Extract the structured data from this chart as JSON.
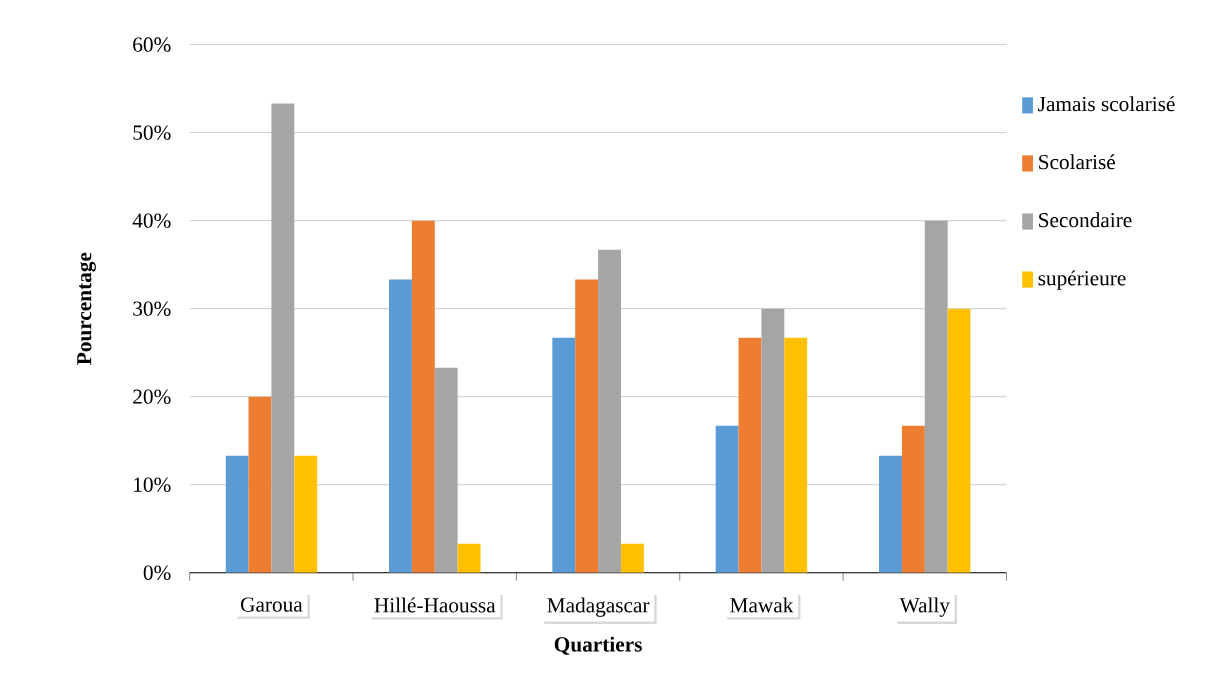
{
  "chart_data": {
    "type": "bar",
    "xlabel": "Quartiers",
    "ylabel": "Pourcentage",
    "categories": [
      "Garoua",
      "Hillé-Haoussa",
      "Madagascar",
      "Mawak",
      "Wally"
    ],
    "series": [
      {
        "name": "Jamais scolarisé",
        "color": "#5b9bd5",
        "values": [
          13.3,
          33.3,
          26.7,
          16.7,
          13.3
        ]
      },
      {
        "name": "Scolarisé",
        "color": "#ed7d31",
        "values": [
          20,
          40,
          33.3,
          26.7,
          16.7
        ]
      },
      {
        "name": "Secondaire",
        "color": "#a5a5a5",
        "values": [
          53.3,
          23.3,
          36.7,
          30,
          40
        ]
      },
      {
        "name": "supérieure",
        "color": "#ffc000",
        "values": [
          13.3,
          3.3,
          3.3,
          26.7,
          30
        ]
      }
    ],
    "ylim": [
      0,
      60
    ],
    "yticks": [
      {
        "value": 0,
        "label": "0%"
      },
      {
        "value": 10,
        "label": "10%"
      },
      {
        "value": 20,
        "label": "20%"
      },
      {
        "value": 30,
        "label": "30%"
      },
      {
        "value": 40,
        "label": "40%"
      },
      {
        "value": 50,
        "label": "50%"
      },
      {
        "value": 60,
        "label": "60%"
      }
    ],
    "grid": "y",
    "legend": "right"
  }
}
